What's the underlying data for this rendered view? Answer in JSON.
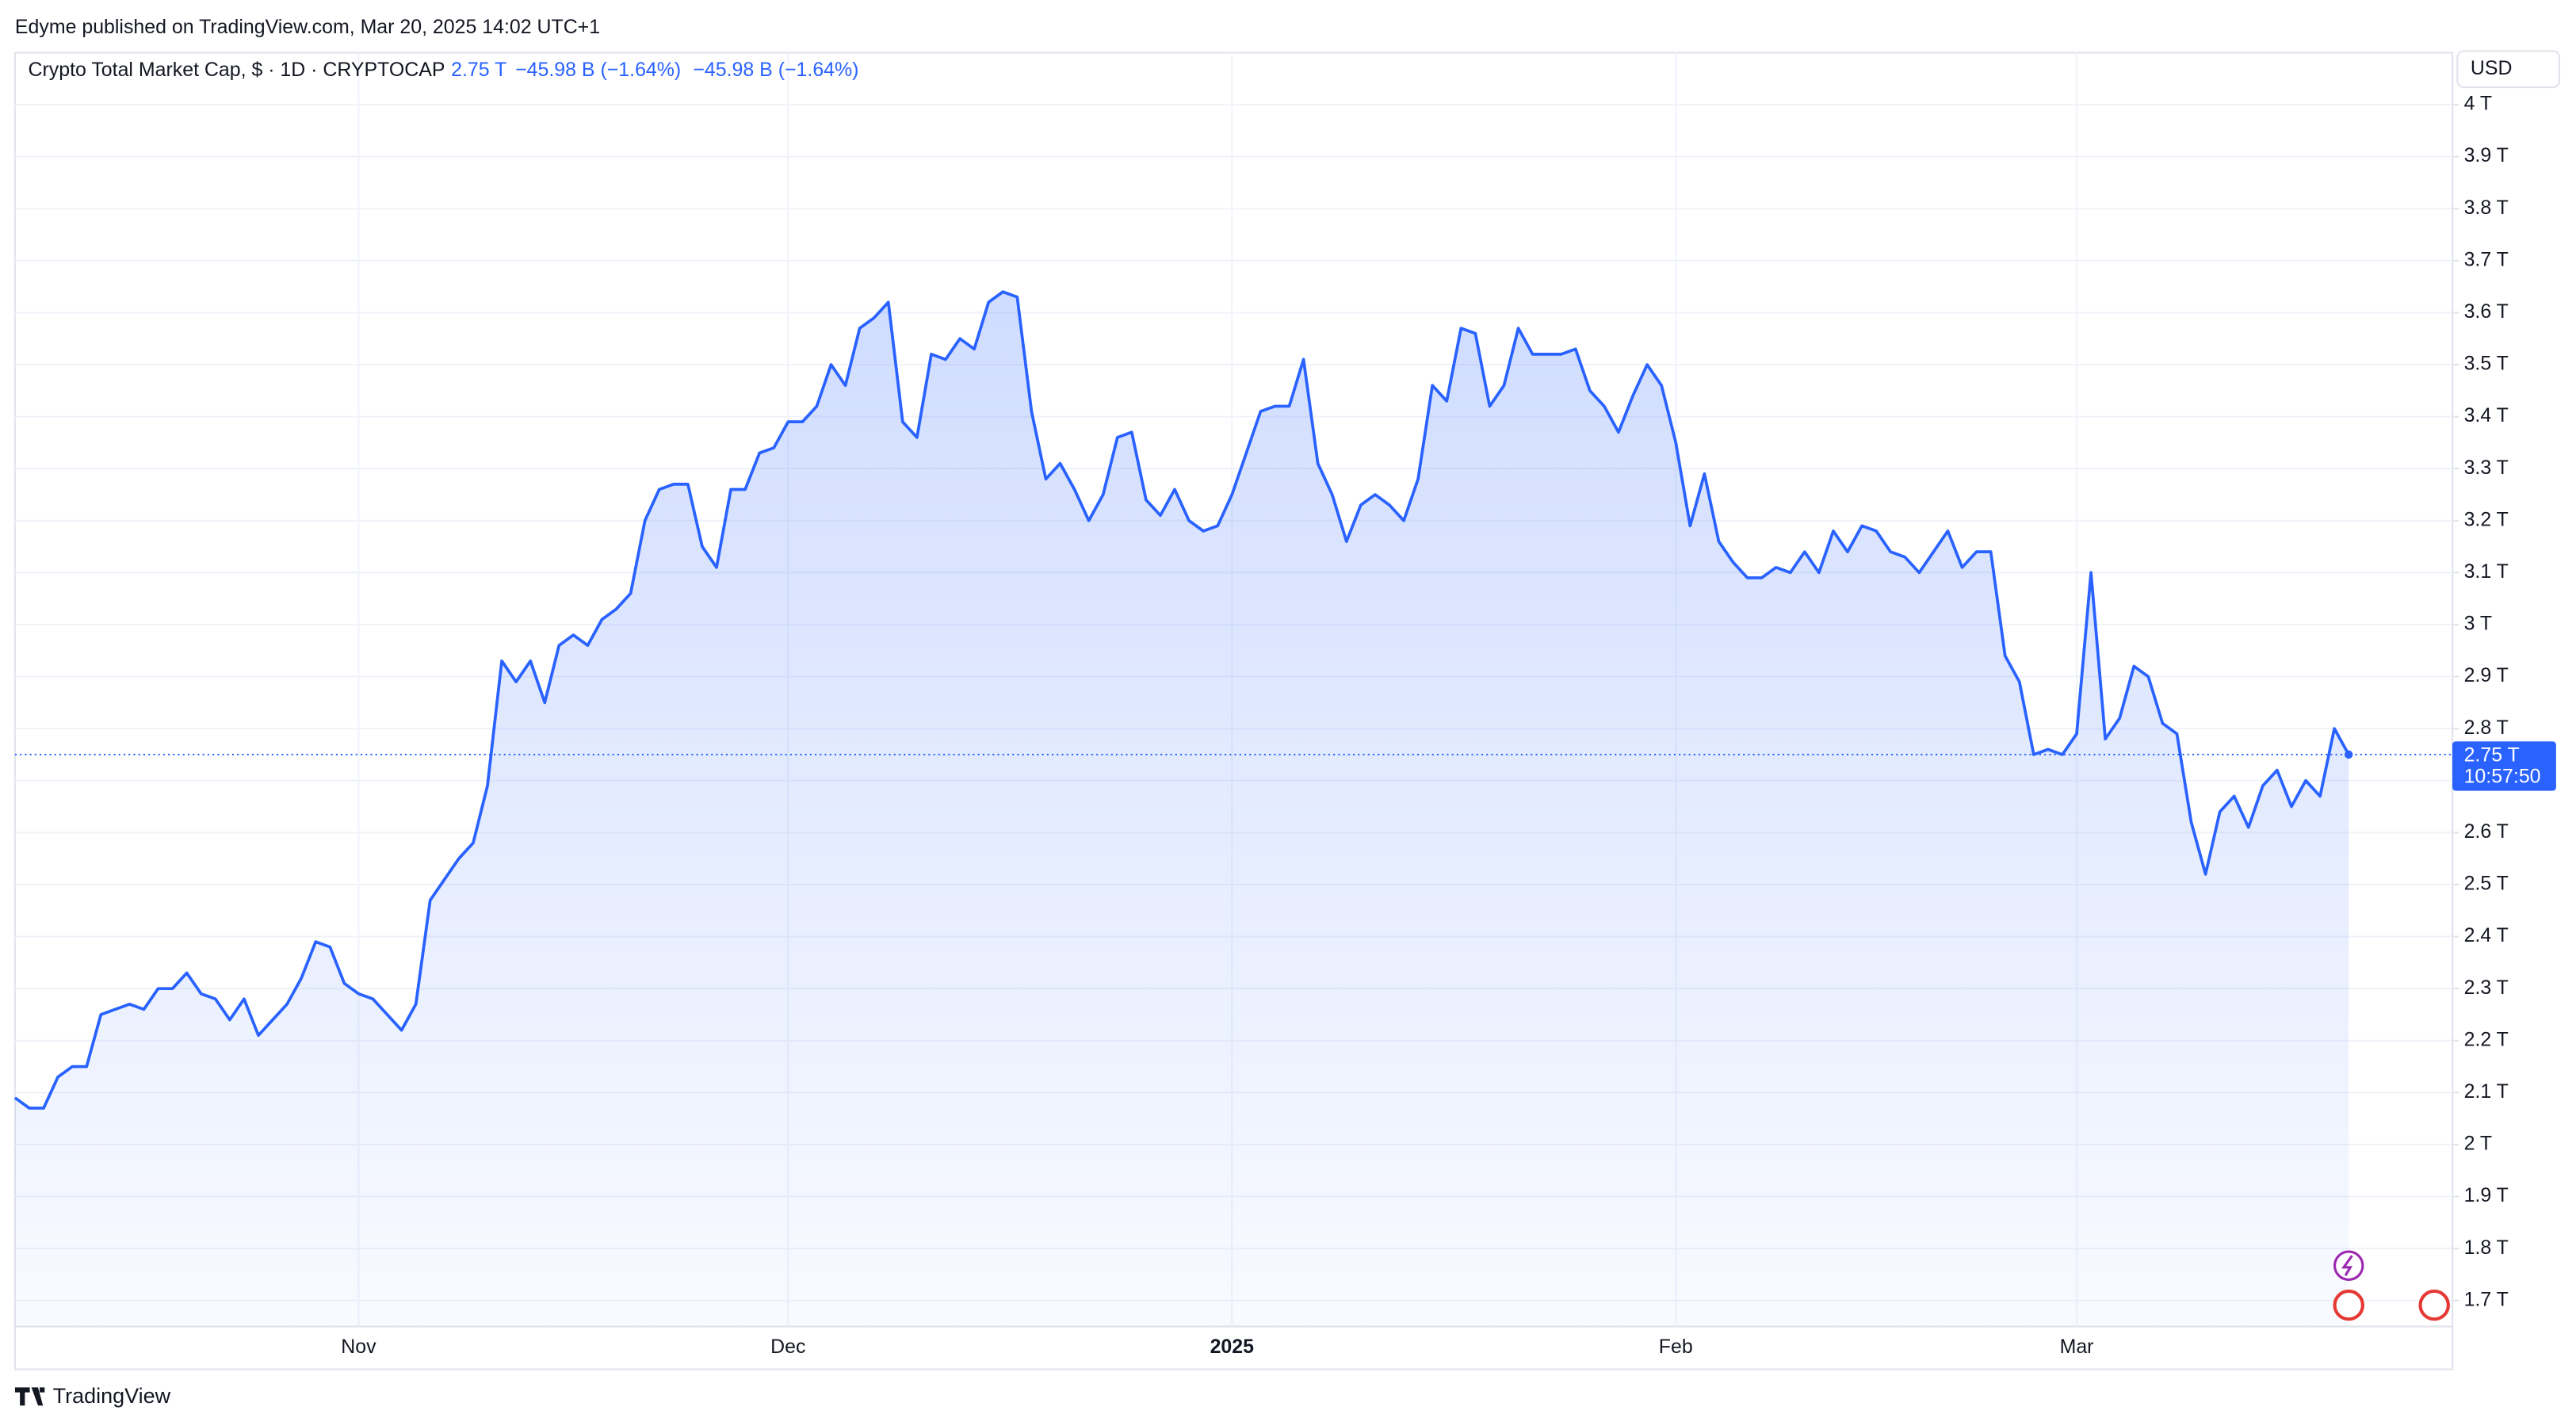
{
  "header": "Edyme published on TradingView.com, Mar 20, 2025 14:02 UTC+1",
  "footer": "TradingView",
  "chart_data": {
    "type": "line",
    "title": "Crypto Total Market Cap, $ · 1D · CRYPTOCAP",
    "last_value": 2.75,
    "last_value_label": "2.75 T",
    "change": "−45.98 B (−1.64%)",
    "currency": "USD",
    "countdown": "10:57:50",
    "color": "#2962ff",
    "grid": true,
    "categories": [
      null,
      null,
      null,
      null,
      null,
      null,
      null,
      null,
      null,
      null,
      null,
      null,
      null,
      null,
      null,
      null,
      null,
      null,
      null,
      null,
      null,
      null,
      null,
      null,
      "Nov",
      null,
      null,
      null,
      null,
      null,
      null,
      null,
      null,
      null,
      null,
      null,
      null,
      null,
      null,
      null,
      null,
      null,
      null,
      null,
      null,
      null,
      null,
      null,
      null,
      null,
      null,
      null,
      null,
      null,
      "Dec",
      null,
      null,
      null,
      null,
      null,
      null,
      null,
      null,
      null,
      null,
      null,
      null,
      null,
      null,
      null,
      null,
      null,
      null,
      null,
      null,
      null,
      null,
      null,
      null,
      null,
      null,
      null,
      null,
      null,
      null,
      "2025",
      null,
      null,
      null,
      null,
      null,
      null,
      null,
      null,
      null,
      null,
      null,
      null,
      null,
      null,
      null,
      null,
      null,
      null,
      null,
      null,
      null,
      null,
      null,
      null,
      null,
      null,
      null,
      null,
      null,
      null,
      "Feb",
      null,
      null,
      null,
      null,
      null,
      null,
      null,
      null,
      null,
      null,
      null,
      null,
      null,
      null,
      null,
      null,
      null,
      null,
      null,
      null,
      null,
      null,
      null,
      null,
      null,
      null,
      null,
      "Mar",
      null,
      null,
      null,
      null,
      null,
      null,
      null,
      null,
      null,
      null,
      null,
      null,
      null,
      null,
      null,
      null,
      null,
      null,
      null
    ],
    "values": [
      2.09,
      2.07,
      2.07,
      2.13,
      2.15,
      2.15,
      2.25,
      2.26,
      2.27,
      2.26,
      2.3,
      2.3,
      2.33,
      2.29,
      2.28,
      2.24,
      2.28,
      2.21,
      2.24,
      2.27,
      2.32,
      2.39,
      2.38,
      2.31,
      2.29,
      2.28,
      2.25,
      2.22,
      2.27,
      2.47,
      2.51,
      2.55,
      2.58,
      2.69,
      2.93,
      2.89,
      2.93,
      2.85,
      2.96,
      2.98,
      2.96,
      3.01,
      3.03,
      3.06,
      3.2,
      3.26,
      3.27,
      3.27,
      3.15,
      3.11,
      3.26,
      3.26,
      3.33,
      3.34,
      3.39,
      3.39,
      3.42,
      3.5,
      3.46,
      3.57,
      3.59,
      3.62,
      3.39,
      3.36,
      3.52,
      3.51,
      3.55,
      3.53,
      3.62,
      3.64,
      3.63,
      3.41,
      3.28,
      3.31,
      3.26,
      3.2,
      3.25,
      3.36,
      3.37,
      3.24,
      3.21,
      3.26,
      3.2,
      3.18,
      3.19,
      3.25,
      3.33,
      3.41,
      3.42,
      3.42,
      3.51,
      3.31,
      3.25,
      3.16,
      3.23,
      3.25,
      3.23,
      3.2,
      3.28,
      3.46,
      3.43,
      3.57,
      3.56,
      3.42,
      3.46,
      3.57,
      3.52,
      3.52,
      3.52,
      3.53,
      3.45,
      3.42,
      3.37,
      3.44,
      3.5,
      3.46,
      3.35,
      3.19,
      3.29,
      3.16,
      3.12,
      3.09,
      3.09,
      3.11,
      3.1,
      3.14,
      3.1,
      3.18,
      3.14,
      3.19,
      3.18,
      3.14,
      3.13,
      3.1,
      3.14,
      3.18,
      3.11,
      3.14,
      3.14,
      2.94,
      2.89,
      2.75,
      2.76,
      2.75,
      2.79,
      3.1,
      2.78,
      2.82,
      2.92,
      2.9,
      2.81,
      2.79,
      2.62,
      2.52,
      2.64,
      2.67,
      2.61,
      2.69,
      2.72,
      2.65,
      2.7,
      2.67,
      2.8,
      2.75
    ],
    "ylim": [
      1.65,
      4.1
    ],
    "yticks": [
      {
        "value": 1.7,
        "label": "1.7 T"
      },
      {
        "value": 1.8,
        "label": "1.8 T"
      },
      {
        "value": 1.9,
        "label": "1.9 T"
      },
      {
        "value": 2,
        "label": "2 T"
      },
      {
        "value": 2.1,
        "label": "2.1 T"
      },
      {
        "value": 2.2,
        "label": "2.2 T"
      },
      {
        "value": 2.3,
        "label": "2.3 T"
      },
      {
        "value": 2.4,
        "label": "2.4 T"
      },
      {
        "value": 2.5,
        "label": "2.5 T"
      },
      {
        "value": 2.6,
        "label": "2.6 T"
      },
      {
        "value": 2.7,
        "label": "2.7 T"
      },
      {
        "value": 2.8,
        "label": "2.8 T"
      },
      {
        "value": 2.9,
        "label": "2.9 T"
      },
      {
        "value": 3,
        "label": "3 T"
      },
      {
        "value": 3.1,
        "label": "3.1 T"
      },
      {
        "value": 3.2,
        "label": "3.2 T"
      },
      {
        "value": 3.3,
        "label": "3.3 T"
      },
      {
        "value": 3.4,
        "label": "3.4 T"
      },
      {
        "value": 3.5,
        "label": "3.5 T"
      },
      {
        "value": 3.6,
        "label": "3.6 T"
      },
      {
        "value": 3.7,
        "label": "3.7 T"
      },
      {
        "value": 3.8,
        "label": "3.8 T"
      },
      {
        "value": 3.9,
        "label": "3.9 T"
      },
      {
        "value": 4,
        "label": "4 T"
      }
    ]
  }
}
